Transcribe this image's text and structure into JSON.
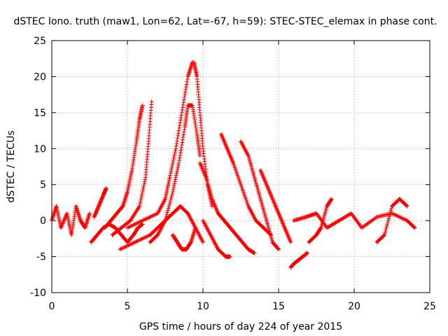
{
  "chart_data": {
    "type": "scatter",
    "title": "dSTEC Iono. truth (maw1, Lon=62, Lat=-67, h=59): STEC-STEC_elemax in phase cont.",
    "xlabel": "GPS time / hours of day 224 of year 2015",
    "ylabel": "dSTEC  / TECUs",
    "xlim": [
      0,
      25
    ],
    "ylim": [
      -10,
      25
    ],
    "x_ticks": [
      0,
      5,
      10,
      15,
      20,
      25
    ],
    "y_ticks": [
      -10,
      -5,
      0,
      5,
      10,
      15,
      20,
      25
    ],
    "x_tick_labels": [
      "0",
      "5",
      "10",
      "15",
      "20",
      "25"
    ],
    "y_tick_labels": [
      "-10",
      "-5",
      "0",
      "5",
      "10",
      "15",
      "20",
      "25"
    ],
    "grid": true,
    "legend": "none",
    "marker": "+",
    "color": "#ff0000",
    "series": [
      {
        "x": [
          0.0,
          0.3,
          0.6,
          1.0,
          1.3,
          1.6,
          1.9,
          2.2,
          2.5
        ],
        "y": [
          0,
          2,
          -1,
          1,
          -2,
          2,
          0,
          -1,
          1
        ]
      },
      {
        "x": [
          2.6,
          3.0,
          3.4,
          3.8,
          4.2,
          4.6,
          5.0,
          5.4,
          5.7,
          6.0
        ],
        "y": [
          -3,
          -2,
          -1,
          -0.5,
          -1,
          -2,
          -3,
          -2,
          -1,
          -0.5
        ]
      },
      {
        "x": [
          2.8,
          3.1,
          3.4,
          3.6
        ],
        "y": [
          0.5,
          2,
          3.5,
          4.5
        ]
      },
      {
        "x": [
          3.5,
          3.9,
          4.3,
          4.7,
          5.0,
          5.3,
          5.6,
          5.8,
          6.0
        ],
        "y": [
          -1,
          0,
          1,
          2,
          4,
          7,
          11,
          14,
          16
        ]
      },
      {
        "x": [
          4.0,
          4.6,
          5.2,
          5.8,
          6.2,
          6.4,
          6.6
        ],
        "y": [
          -2,
          -1,
          0,
          2,
          6,
          11,
          16.5
        ]
      },
      {
        "x": [
          4.5,
          5.5,
          6.5,
          7.0,
          7.5,
          8.0,
          8.5,
          9.0,
          9.5,
          10.0
        ],
        "y": [
          -4,
          -3,
          -2,
          -1,
          0,
          1,
          2,
          1,
          -1,
          -3
        ]
      },
      {
        "x": [
          5.0,
          6.0,
          7.0,
          7.5,
          7.8,
          8.2,
          8.6,
          9.0,
          9.3
        ],
        "y": [
          -1,
          0,
          1,
          3,
          6,
          10,
          15,
          20,
          22
        ]
      },
      {
        "x": [
          6.5,
          7.0,
          7.5,
          8.0,
          8.4,
          8.8,
          9.0,
          9.3,
          9.6,
          9.8
        ],
        "y": [
          -3,
          -2,
          0,
          4,
          8,
          13,
          16,
          16,
          12,
          9
        ]
      },
      {
        "x": [
          8.0,
          8.3,
          8.6,
          8.9,
          9.2,
          9.5
        ],
        "y": [
          -2,
          -3,
          -4,
          -4,
          -3,
          -1
        ]
      },
      {
        "x": [
          9.4,
          9.6,
          9.8,
          10.0,
          10.3,
          10.6
        ],
        "y": [
          22,
          20,
          15,
          10,
          5,
          2
        ]
      },
      {
        "x": [
          9.8,
          10.2,
          10.6,
          11.0,
          11.4,
          11.8,
          12.2,
          12.6,
          13.0,
          13.4
        ],
        "y": [
          8,
          6,
          3,
          1,
          0,
          -1,
          -2,
          -3,
          -4,
          -4.5
        ]
      },
      {
        "x": [
          10.0,
          10.5,
          11.0,
          11.5,
          11.8
        ],
        "y": [
          0,
          -2,
          -4,
          -5,
          -5
        ]
      },
      {
        "x": [
          11.2,
          11.6,
          12.0,
          12.5,
          13.0,
          13.5,
          14.0,
          14.5
        ],
        "y": [
          12,
          10,
          8,
          5,
          2,
          0,
          -1,
          -2
        ]
      },
      {
        "x": [
          12.5,
          13.0,
          13.4,
          13.8,
          14.2,
          14.6,
          15.0
        ],
        "y": [
          11,
          9,
          6,
          3,
          0,
          -3,
          -4
        ]
      },
      {
        "x": [
          13.8,
          14.2,
          14.6,
          15.0,
          15.4,
          15.8
        ],
        "y": [
          7,
          5,
          3,
          1,
          -1,
          -3
        ]
      },
      {
        "x": [
          15.8,
          16.0,
          16.3,
          16.6,
          16.9
        ],
        "y": [
          -6.5,
          -6,
          -5.5,
          -5,
          -4.5
        ]
      },
      {
        "x": [
          16.0,
          16.8,
          17.5,
          18.2,
          19.0,
          19.8,
          20.5,
          21.5,
          22.5,
          23.5,
          24.0
        ],
        "y": [
          0,
          0.5,
          1,
          -1,
          0,
          1,
          -1,
          0.5,
          1,
          0,
          -1
        ]
      },
      {
        "x": [
          17.0,
          17.5,
          17.8,
          18.2,
          18.5
        ],
        "y": [
          -3,
          -2,
          -1,
          2,
          3
        ]
      },
      {
        "x": [
          21.5,
          22.0,
          22.5,
          23.0,
          23.5
        ],
        "y": [
          -3,
          -2,
          2,
          3,
          2
        ]
      }
    ]
  }
}
